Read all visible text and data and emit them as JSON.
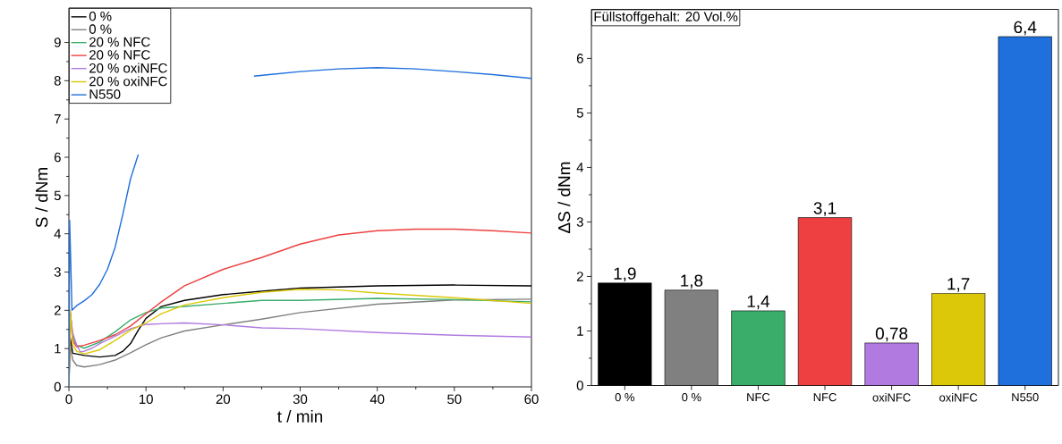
{
  "chart_data": [
    {
      "type": "line",
      "xlabel": "t / min",
      "ylabel": "S / dNm",
      "xlim": [
        0,
        60
      ],
      "ylim": [
        0,
        9.9
      ],
      "xticks": [
        0,
        10,
        20,
        30,
        40,
        50,
        60
      ],
      "yticks": [
        0,
        1,
        2,
        3,
        4,
        5,
        6,
        7,
        8,
        9
      ],
      "legend": "top left",
      "series": [
        {
          "name": "0 %",
          "color": "#000000",
          "x": [
            0,
            0.15,
            0.5,
            1,
            2,
            4,
            6,
            7,
            8,
            9,
            10,
            12,
            15,
            20,
            25,
            30,
            40,
            50,
            60
          ],
          "values": [
            0,
            1.3,
            0.88,
            0.86,
            0.82,
            0.78,
            0.82,
            0.93,
            1.13,
            1.48,
            1.79,
            2.1,
            2.26,
            2.41,
            2.5,
            2.58,
            2.64,
            2.66,
            2.64
          ]
        },
        {
          "name": "0 %",
          "color": "#808080",
          "x": [
            0,
            0.15,
            0.5,
            1,
            2,
            4,
            6,
            8,
            10,
            12,
            15,
            20,
            25,
            30,
            40,
            50,
            60
          ],
          "values": [
            0,
            1.1,
            0.7,
            0.56,
            0.52,
            0.58,
            0.7,
            0.89,
            1.1,
            1.28,
            1.46,
            1.62,
            1.77,
            1.94,
            2.16,
            2.27,
            2.29
          ]
        },
        {
          "name": "20 % NFC",
          "color": "#3aad6a",
          "x": [
            0,
            0.15,
            0.5,
            1,
            2,
            4,
            6,
            8,
            10,
            12,
            15,
            20,
            25,
            30,
            40,
            50,
            60
          ],
          "values": [
            0,
            2.0,
            1.3,
            1.09,
            1.01,
            1.17,
            1.44,
            1.75,
            1.94,
            2.06,
            2.1,
            2.18,
            2.26,
            2.26,
            2.31,
            2.28,
            2.22
          ]
        },
        {
          "name": "20 % NFC",
          "color": "#ee4040",
          "x": [
            0,
            0.15,
            0.5,
            1,
            2,
            4,
            6,
            8,
            10,
            12,
            15,
            20,
            25,
            30,
            35,
            40,
            45,
            50,
            55,
            60
          ],
          "values": [
            0,
            2.0,
            1.2,
            1.05,
            1.09,
            1.21,
            1.36,
            1.59,
            1.91,
            2.22,
            2.64,
            3.07,
            3.38,
            3.73,
            3.97,
            4.08,
            4.12,
            4.12,
            4.08,
            4.02
          ]
        },
        {
          "name": "20 % oxiNFC",
          "color": "#b07ae0",
          "x": [
            0,
            0.15,
            0.5,
            1,
            1.5,
            2,
            3,
            4,
            6,
            8,
            10,
            12,
            15,
            20,
            25,
            30,
            40,
            50,
            60
          ],
          "values": [
            0,
            2.0,
            1.4,
            1.09,
            0.91,
            0.93,
            1.01,
            1.13,
            1.32,
            1.52,
            1.63,
            1.65,
            1.67,
            1.62,
            1.54,
            1.52,
            1.42,
            1.35,
            1.3
          ]
        },
        {
          "name": "20 % oxiNFC",
          "color": "#dcc808",
          "x": [
            0,
            0.15,
            0.5,
            1,
            2,
            4,
            6,
            8,
            10,
            12,
            15,
            20,
            25,
            30,
            35,
            40,
            50,
            60
          ],
          "values": [
            0,
            2.0,
            1.1,
            0.93,
            0.86,
            0.97,
            1.21,
            1.48,
            1.67,
            1.91,
            2.14,
            2.33,
            2.47,
            2.55,
            2.53,
            2.45,
            2.33,
            2.18
          ]
        },
        {
          "name": "N550",
          "color": "#1f6fdd",
          "x": [
            0,
            0.1,
            0.4,
            1,
            2,
            3,
            4,
            5,
            6,
            7,
            8,
            9,
            10,
            12,
            15,
            18,
            20,
            22,
            24,
            26,
            30,
            35,
            40,
            45,
            50,
            55,
            60
          ],
          "values": [
            0,
            4.35,
            2.0,
            2.12,
            2.25,
            2.41,
            2.68,
            3.07,
            3.65,
            4.51,
            5.44,
            6.07,
            null,
            null,
            null,
            null,
            null,
            null,
            8.12,
            8.16,
            8.24,
            8.31,
            8.34,
            8.31,
            8.24,
            8.16,
            8.06
          ]
        }
      ]
    },
    {
      "type": "bar",
      "ylabel": "ΔS / dNm",
      "ylim": [
        0,
        6.9
      ],
      "yticks": [
        0,
        1,
        2,
        3,
        4,
        5,
        6
      ],
      "categories": [
        "0 %",
        "0 %",
        "NFC",
        "NFC",
        "oxiNFC",
        "oxiNFC",
        "N550"
      ],
      "values": [
        1.88,
        1.75,
        1.37,
        3.08,
        0.78,
        1.69,
        6.4
      ],
      "value_labels": [
        "1,9",
        "1,8",
        "1,4",
        "3,1",
        "0,78",
        "1,7",
        "6,4"
      ],
      "colors": [
        "#000000",
        "#808080",
        "#3aad6a",
        "#ee4040",
        "#b07ae0",
        "#dcc808",
        "#1f6fdd"
      ],
      "annotations": [
        "Füllstoffgehalt: 20 Vol.%"
      ]
    }
  ]
}
